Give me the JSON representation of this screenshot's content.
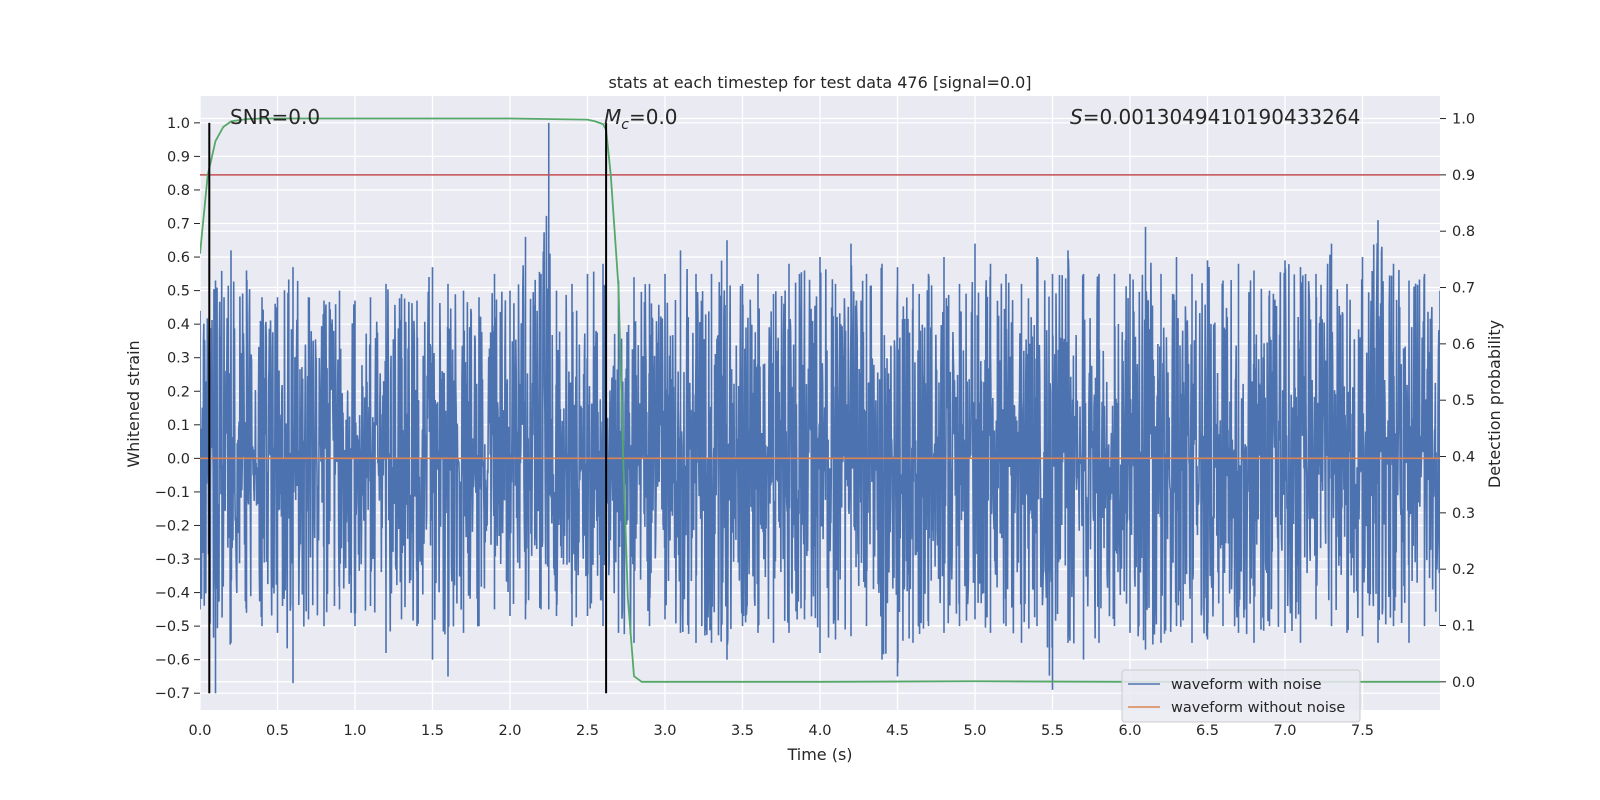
{
  "chart_data": {
    "type": "line",
    "title": "stats at each timestep for test data 476 [signal=0.0]",
    "xlabel": "Time (s)",
    "ylabel": "Whitened strain",
    "ylabel_right": "Detection probability",
    "xlim": [
      0.0,
      8.0
    ],
    "ylim": [
      -0.75,
      1.08
    ],
    "ylim_right": [
      -0.05,
      1.04
    ],
    "x_ticks": [
      "0.0",
      "0.5",
      "1.0",
      "1.5",
      "2.0",
      "2.5",
      "3.0",
      "3.5",
      "4.0",
      "4.5",
      "5.0",
      "5.5",
      "6.0",
      "6.5",
      "7.0",
      "7.5"
    ],
    "y_ticks": [
      "1.0",
      "0.9",
      "0.8",
      "0.7",
      "0.6",
      "0.5",
      "0.4",
      "0.3",
      "0.2",
      "0.1",
      "0.0",
      "−0.1",
      "−0.2",
      "−0.3",
      "−0.4",
      "−0.5",
      "−0.6",
      "−0.7"
    ],
    "y_right_ticks": [
      "1.0",
      "0.9",
      "0.8",
      "0.7",
      "0.6",
      "0.5",
      "0.4",
      "0.3",
      "0.2",
      "0.1",
      "0.0"
    ],
    "grid": true,
    "legend_position": "bottom-right",
    "annotations": {
      "snr": "SNR=0.0",
      "mc_symbol": "M",
      "mc_sub": "c",
      "mc_value": "=0.0",
      "s_symbol": "S",
      "s_value": "=0.0013049410190433264"
    },
    "series": [
      {
        "name": "waveform with noise",
        "axis": "left",
        "color": "#4c72b0",
        "envelope_x": [
          0.0,
          0.1,
          0.2,
          0.3,
          0.4,
          0.5,
          0.6,
          0.7,
          0.8,
          0.9,
          1.0,
          1.1,
          1.2,
          1.3,
          1.4,
          1.5,
          1.6,
          1.7,
          1.8,
          1.9,
          2.0,
          2.1,
          2.2,
          2.25,
          2.3,
          2.4,
          2.5,
          2.6,
          2.7,
          2.8,
          2.9,
          3.0,
          3.1,
          3.2,
          3.3,
          3.4,
          3.5,
          3.6,
          3.7,
          3.8,
          3.9,
          4.0,
          4.1,
          4.2,
          4.3,
          4.4,
          4.5,
          4.6,
          4.7,
          4.8,
          4.9,
          5.0,
          5.1,
          5.2,
          5.3,
          5.4,
          5.5,
          5.6,
          5.7,
          5.8,
          5.9,
          6.0,
          6.1,
          6.2,
          6.3,
          6.4,
          6.5,
          6.6,
          6.7,
          6.8,
          6.9,
          7.0,
          7.1,
          7.2,
          7.3,
          7.4,
          7.5,
          7.6,
          7.7,
          7.8,
          7.9,
          8.0
        ],
        "envelope_max": [
          0.44,
          0.53,
          0.62,
          0.56,
          0.48,
          0.48,
          0.57,
          0.48,
          0.47,
          0.5,
          0.47,
          0.48,
          0.52,
          0.49,
          0.47,
          0.57,
          0.52,
          0.5,
          0.48,
          0.55,
          0.5,
          0.66,
          0.55,
          1.0,
          0.5,
          0.52,
          0.55,
          0.58,
          0.53,
          0.54,
          0.52,
          0.55,
          0.62,
          0.55,
          0.55,
          0.65,
          0.52,
          0.55,
          0.49,
          0.58,
          0.56,
          0.6,
          0.52,
          0.64,
          0.55,
          0.58,
          0.57,
          0.52,
          0.55,
          0.6,
          0.52,
          0.64,
          0.58,
          0.55,
          0.52,
          0.6,
          0.55,
          0.62,
          0.55,
          0.55,
          0.55,
          0.55,
          0.69,
          0.55,
          0.6,
          0.55,
          0.59,
          0.53,
          0.58,
          0.56,
          0.5,
          0.59,
          0.57,
          0.55,
          0.64,
          0.52,
          0.6,
          0.71,
          0.58,
          0.53,
          0.55,
          0.5
        ],
        "envelope_min": [
          -0.45,
          -0.7,
          -0.55,
          -0.46,
          -0.5,
          -0.52,
          -0.67,
          -0.48,
          -0.5,
          -0.45,
          -0.5,
          -0.44,
          -0.58,
          -0.48,
          -0.5,
          -0.6,
          -0.65,
          -0.52,
          -0.5,
          -0.45,
          -0.47,
          -0.48,
          -0.45,
          -0.45,
          -0.47,
          -0.5,
          -0.47,
          -0.5,
          -0.52,
          -0.55,
          -0.5,
          -0.48,
          -0.52,
          -0.55,
          -0.55,
          -0.6,
          -0.5,
          -0.52,
          -0.55,
          -0.52,
          -0.48,
          -0.58,
          -0.54,
          -0.53,
          -0.5,
          -0.6,
          -0.65,
          -0.55,
          -0.5,
          -0.52,
          -0.5,
          -0.48,
          -0.52,
          -0.5,
          -0.55,
          -0.5,
          -0.69,
          -0.55,
          -0.6,
          -0.55,
          -0.5,
          -0.52,
          -0.57,
          -0.55,
          -0.5,
          -0.55,
          -0.54,
          -0.5,
          -0.52,
          -0.55,
          -0.5,
          -0.52,
          -0.55,
          -0.48,
          -0.5,
          -0.52,
          -0.53,
          -0.55,
          -0.5,
          -0.55,
          -0.5,
          -0.5
        ]
      },
      {
        "name": "waveform without noise",
        "axis": "left",
        "color": "#dd8452",
        "x": [
          0.0,
          8.0
        ],
        "y": [
          0.0,
          0.0
        ]
      },
      {
        "axis": "right",
        "color": "#55a868",
        "x": [
          0.0,
          0.05,
          0.1,
          0.15,
          0.2,
          0.3,
          0.4,
          0.6,
          1.0,
          2.0,
          2.5,
          2.55,
          2.6,
          2.62,
          2.65,
          2.7,
          2.73,
          2.76,
          2.8,
          2.85,
          2.9,
          3.0,
          4.0,
          5.0,
          6.0,
          7.0,
          8.0
        ],
        "y": [
          0.76,
          0.9,
          0.96,
          0.985,
          0.995,
          0.999,
          1.0,
          1.0,
          1.0,
          1.0,
          0.998,
          0.995,
          0.99,
          0.98,
          0.9,
          0.7,
          0.4,
          0.15,
          0.01,
          0.0,
          0.0,
          0.0,
          0.0,
          0.001,
          0.0,
          0.0,
          0.0
        ]
      }
    ],
    "threshold": {
      "axis": "right",
      "value": 0.9,
      "color": "#c44e52"
    },
    "vlines": [
      {
        "x": 0.06,
        "y0": -0.7,
        "y1": 1.0,
        "color": "#000000"
      },
      {
        "x": 2.62,
        "y0": -0.7,
        "y1": 1.0,
        "color": "#000000"
      }
    ]
  }
}
